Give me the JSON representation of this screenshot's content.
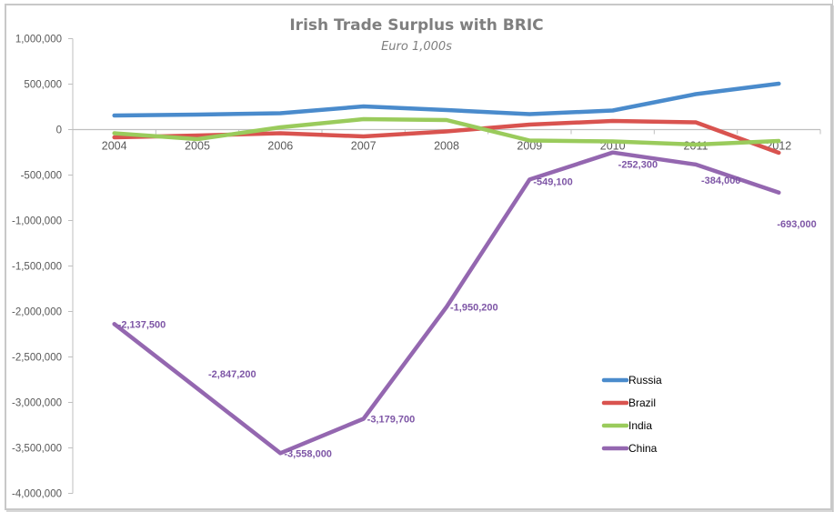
{
  "chart_data": {
    "type": "line",
    "title": "Irish Trade Surplus with BRIC",
    "subtitle": "Euro 1,000s",
    "xlabel": "",
    "ylabel": "",
    "categories": [
      "2004",
      "2005",
      "2006",
      "2007",
      "2008",
      "2009",
      "2010",
      "2011",
      "2012"
    ],
    "ylim": [
      -4000000,
      1000000
    ],
    "yticks": [
      1000000,
      500000,
      0,
      -500000,
      -1000000,
      -1500000,
      -2000000,
      -2500000,
      -3000000,
      -3500000,
      -4000000
    ],
    "ytick_labels": [
      "1,000,000",
      "500,000",
      "0",
      "-500,000",
      "-1,000,000",
      "-1,500,000",
      "-2,000,000",
      "-2,500,000",
      "-3,000,000",
      "-3,500,000",
      "-4,000,000"
    ],
    "grid": false,
    "legend_position": "inside-bottom-right",
    "series": [
      {
        "name": "Russia",
        "color": "#4a8bcc",
        "values": [
          155000,
          165000,
          180000,
          255000,
          215000,
          170000,
          210000,
          390000,
          505000
        ]
      },
      {
        "name": "Brazil",
        "color": "#d9534f",
        "values": [
          -85000,
          -65000,
          -40000,
          -75000,
          -20000,
          55000,
          95000,
          80000,
          -255000
        ]
      },
      {
        "name": "India",
        "color": "#9acb5c",
        "values": [
          -40000,
          -105000,
          25000,
          115000,
          105000,
          -120000,
          -130000,
          -165000,
          -125000
        ]
      },
      {
        "name": "China",
        "color": "#9467b0",
        "values": [
          -2137500,
          -2847200,
          -3558000,
          -3179700,
          -1950200,
          -549100,
          -252300,
          -384000,
          -693000
        ],
        "data_labels": [
          "-2,137,500",
          "-2,847,200",
          "-3,558,000",
          "-3,179,700",
          "-1,950,200",
          "-549,100",
          "-252,300",
          "-384,000",
          "-693,000"
        ]
      }
    ]
  }
}
